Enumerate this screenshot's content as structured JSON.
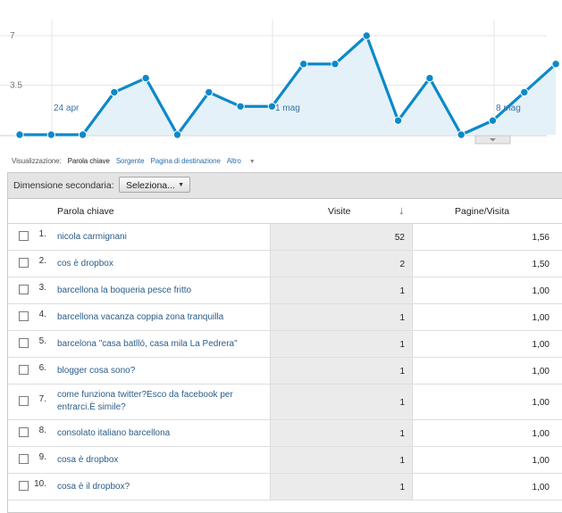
{
  "chart": {
    "y_labels": [
      "7",
      "3.5"
    ],
    "x_labels": [
      "24 apr",
      "1 mag",
      "8 mag"
    ],
    "color": "#0c89c9",
    "fill": "#e5f1f8"
  },
  "chart_data": {
    "type": "area",
    "ylim": [
      0,
      7
    ],
    "yticks": [
      3.5,
      7
    ],
    "xtick_labels": [
      "24 apr",
      "1 mag",
      "8 mag"
    ],
    "values": [
      0,
      0,
      0,
      3,
      4,
      0,
      3,
      2,
      2,
      5,
      5,
      7,
      1,
      4,
      0,
      1,
      3,
      5
    ]
  },
  "view": {
    "label": "Visualizzazione:",
    "active": "Parola chiave",
    "links": [
      "Sorgente",
      "Pagina di destinazione",
      "Altro"
    ]
  },
  "toolbar": {
    "secondary_label": "Dimensione secondaria:",
    "select_value": "Seleziona..."
  },
  "table": {
    "columns": {
      "keyword": "Parola chiave",
      "visits": "Visite",
      "ppv": "Pagine/Visita"
    },
    "rows": [
      {
        "n": "1.",
        "keyword": "nicola carmignani",
        "visits": "52",
        "ppv": "1,56"
      },
      {
        "n": "2.",
        "keyword": "cos è dropbox",
        "visits": "2",
        "ppv": "1,50"
      },
      {
        "n": "3.",
        "keyword": "barcellona la boqueria pesce fritto",
        "visits": "1",
        "ppv": "1,00"
      },
      {
        "n": "4.",
        "keyword": "barcellona vacanza coppia zona tranquilla",
        "visits": "1",
        "ppv": "1,00"
      },
      {
        "n": "5.",
        "keyword": "barcelona \"casa batlló, casa mila La Pedrera\"",
        "visits": "1",
        "ppv": "1,00"
      },
      {
        "n": "6.",
        "keyword": "blogger cosa sono?",
        "visits": "1",
        "ppv": "1,00"
      },
      {
        "n": "7.",
        "keyword": "come funziona twitter?Esco da facebook per entrarci.È simile?",
        "visits": "1",
        "ppv": "1,00"
      },
      {
        "n": "8.",
        "keyword": "consolato italiano barcellona",
        "visits": "1",
        "ppv": "1,00"
      },
      {
        "n": "9.",
        "keyword": "cosa è dropbox",
        "visits": "1",
        "ppv": "1,00"
      },
      {
        "n": "10.",
        "keyword": "cosa è il dropbox?",
        "visits": "1",
        "ppv": "1,00"
      }
    ]
  }
}
